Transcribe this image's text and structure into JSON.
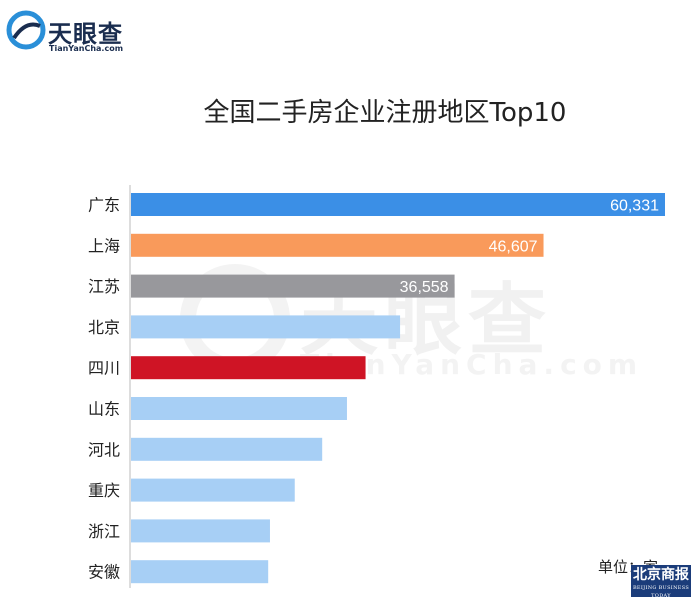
{
  "logo": {
    "name": "天眼查",
    "sub": "TianYanCha.com"
  },
  "watermark": {
    "main": "天眼查",
    "sub": "TianYanCha.com"
  },
  "unit_label": "单位：家",
  "stamp": {
    "main": "北京商报",
    "sub": "BEIJING BUSINESS TODAY"
  },
  "colors": {
    "default_bar": "#a7cff5",
    "highlight": [
      "#3b8fe6",
      "#f99a5b",
      "#98989c",
      null,
      "#cf1425"
    ]
  },
  "chart_data": {
    "type": "bar",
    "orientation": "horizontal",
    "title": "全国二手房企业注册地区Top10",
    "categories": [
      "广东",
      "上海",
      "江苏",
      "北京",
      "四川",
      "山东",
      "河北",
      "重庆",
      "浙江",
      "安徽"
    ],
    "values": [
      60331,
      46607,
      36558,
      30400,
      26500,
      24400,
      21600,
      18500,
      15700,
      15500
    ],
    "value_labels": [
      "60,331",
      "46,607",
      "36,558",
      null,
      null,
      null,
      null,
      null,
      null,
      null
    ],
    "xlim": [
      0,
      60331
    ],
    "grid": false,
    "legend": "none"
  }
}
